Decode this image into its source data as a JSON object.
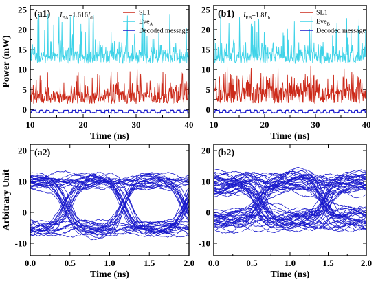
{
  "chart_data": [
    {
      "type": "line",
      "panel_label": "(a1)",
      "condition": {
        "prefix": "I",
        "sub": "EA",
        "middle": "=1.616",
        "var": "I",
        "sub2": "th"
      },
      "xlabel": "Time (ns)",
      "ylabel": "Power (mW)",
      "xlim": [
        10,
        40
      ],
      "ylim": [
        -2,
        26
      ],
      "xticks": [
        10,
        20,
        30,
        40
      ],
      "yticks": [
        0,
        5,
        10,
        15,
        20,
        25
      ],
      "legend_position": "top-right",
      "series": [
        {
          "name": "SL1",
          "color": "#cc2a1a",
          "baseline": 3.0,
          "spread": 2.4,
          "peak_max": 10.5
        },
        {
          "name": "EveA",
          "name_main": "Eve",
          "name_sub": "A",
          "color": "#3fd3e8",
          "baseline": 13.0,
          "spread": 2.3,
          "peak_max": 24.0
        },
        {
          "name": "Decoded message",
          "color": "#1a1acc",
          "levels": [
            -0.8,
            -0.2
          ]
        }
      ]
    },
    {
      "type": "line",
      "panel_label": "(b1)",
      "condition": {
        "prefix": "I",
        "sub": "EB",
        "middle": "=1.8",
        "var": "I",
        "sub2": "th"
      },
      "xlabel": "Time (ns)",
      "ylabel": "",
      "xlim": [
        10,
        40
      ],
      "ylim": [
        -2,
        26
      ],
      "xticks": [
        10,
        20,
        30,
        40
      ],
      "yticks": [
        0,
        5,
        10,
        15,
        20,
        25
      ],
      "legend_position": "top-right",
      "series": [
        {
          "name": "SL1",
          "color": "#cc2a1a",
          "baseline": 3.5,
          "spread": 3.0,
          "peak_max": 11.0
        },
        {
          "name": "EveB",
          "name_main": "Eve",
          "name_sub": "B",
          "color": "#3fd3e8",
          "baseline": 13.0,
          "spread": 2.2,
          "peak_max": 24.0
        },
        {
          "name": "Decoded message",
          "color": "#1a1acc",
          "levels": [
            -0.8,
            -0.2
          ]
        }
      ]
    },
    {
      "type": "line",
      "subtype": "eye diagram",
      "panel_label": "(a2)",
      "xlabel": "Time (ns)",
      "ylabel": "Arbitrary Unit",
      "xlim": [
        0.0,
        2.0
      ],
      "ylim": [
        -14,
        22
      ],
      "xticks": [
        0.0,
        0.5,
        1.0,
        1.5,
        2.0
      ],
      "yticks": [
        -10,
        0,
        10,
        20
      ],
      "series": [
        {
          "name": "",
          "color": "#1a1acc",
          "high_level": 10.5,
          "low_level": -5.5,
          "crossings": [
            0.45,
            1.2,
            1.95
          ],
          "noise": 2.2,
          "traces": 46
        }
      ]
    },
    {
      "type": "line",
      "subtype": "eye diagram",
      "panel_label": "(b2)",
      "xlabel": "Time (ns)",
      "ylabel": "",
      "xlim": [
        0.0,
        2.0
      ],
      "ylim": [
        -14,
        22
      ],
      "xticks": [
        0.0,
        0.5,
        1.0,
        1.5,
        2.0
      ],
      "yticks": [
        -10,
        0,
        10,
        20
      ],
      "series": [
        {
          "name": "",
          "color": "#1a1acc",
          "high_level": 9.5,
          "low_level": -2.5,
          "crossings": [
            0.6,
            1.45
          ],
          "noise": 3.6,
          "traces": 60
        }
      ]
    }
  ]
}
